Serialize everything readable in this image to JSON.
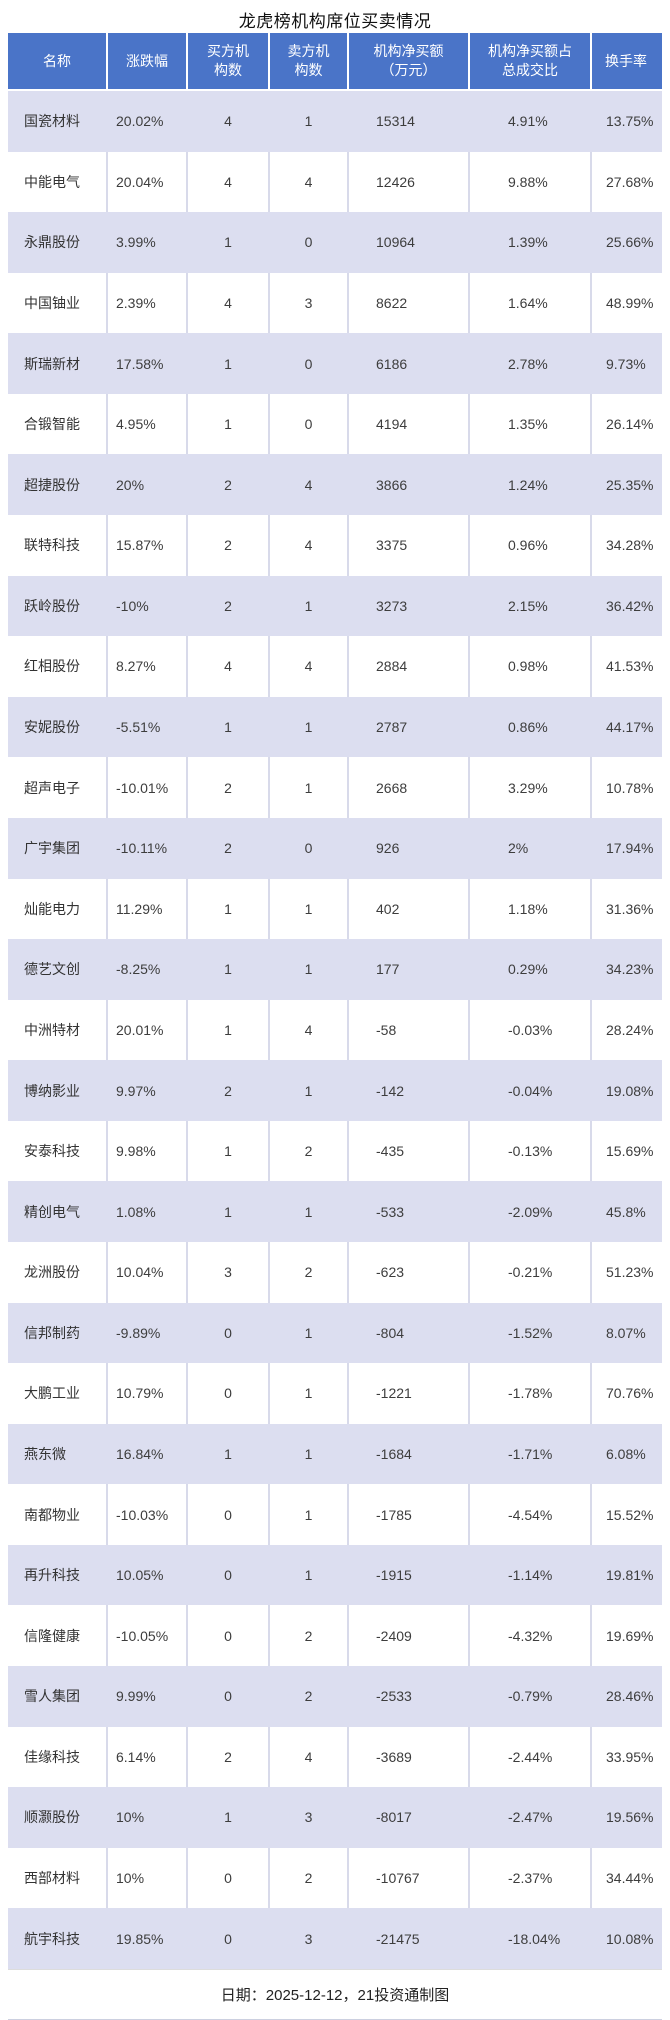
{
  "title": "龙虎榜机构席位买卖情况",
  "chart_data": {
    "type": "table",
    "title": "龙虎榜机构席位买卖情况",
    "columns": [
      "名称",
      "涨跌幅",
      "买方机构数",
      "卖方机构数",
      "机构净买额（万元）",
      "机构净买额占总成交比",
      "换手率"
    ],
    "header_lines": [
      [
        "名称"
      ],
      [
        "涨跌幅"
      ],
      [
        "买方机",
        "构数"
      ],
      [
        "卖方机",
        "构数"
      ],
      [
        "机构净买额",
        "（万元）"
      ],
      [
        "机构净买额占",
        "总成交比"
      ],
      [
        "换手率"
      ]
    ],
    "rows": [
      [
        "国瓷材料",
        "20.02%",
        "4",
        "1",
        "15314",
        "4.91%",
        "13.75%"
      ],
      [
        "中能电气",
        "20.04%",
        "4",
        "4",
        "12426",
        "9.88%",
        "27.68%"
      ],
      [
        "永鼎股份",
        "3.99%",
        "1",
        "0",
        "10964",
        "1.39%",
        "25.66%"
      ],
      [
        "中国铀业",
        "2.39%",
        "4",
        "3",
        "8622",
        "1.64%",
        "48.99%"
      ],
      [
        "斯瑞新材",
        "17.58%",
        "1",
        "0",
        "6186",
        "2.78%",
        "9.73%"
      ],
      [
        "合锻智能",
        "4.95%",
        "1",
        "0",
        "4194",
        "1.35%",
        "26.14%"
      ],
      [
        "超捷股份",
        "20%",
        "2",
        "4",
        "3866",
        "1.24%",
        "25.35%"
      ],
      [
        "联特科技",
        "15.87%",
        "2",
        "4",
        "3375",
        "0.96%",
        "34.28%"
      ],
      [
        "跃岭股份",
        "-10%",
        "2",
        "1",
        "3273",
        "2.15%",
        "36.42%"
      ],
      [
        "红相股份",
        "8.27%",
        "4",
        "4",
        "2884",
        "0.98%",
        "41.53%"
      ],
      [
        "安妮股份",
        "-5.51%",
        "1",
        "1",
        "2787",
        "0.86%",
        "44.17%"
      ],
      [
        "超声电子",
        "-10.01%",
        "2",
        "1",
        "2668",
        "3.29%",
        "10.78%"
      ],
      [
        "广宇集团",
        "-10.11%",
        "2",
        "0",
        "926",
        "2%",
        "17.94%"
      ],
      [
        "灿能电力",
        "11.29%",
        "1",
        "1",
        "402",
        "1.18%",
        "31.36%"
      ],
      [
        "德艺文创",
        "-8.25%",
        "1",
        "1",
        "177",
        "0.29%",
        "34.23%"
      ],
      [
        "中洲特材",
        "20.01%",
        "1",
        "4",
        "-58",
        "-0.03%",
        "28.24%"
      ],
      [
        "博纳影业",
        "9.97%",
        "2",
        "1",
        "-142",
        "-0.04%",
        "19.08%"
      ],
      [
        "安泰科技",
        "9.98%",
        "1",
        "2",
        "-435",
        "-0.13%",
        "15.69%"
      ],
      [
        "精创电气",
        "1.08%",
        "1",
        "1",
        "-533",
        "-2.09%",
        "45.8%"
      ],
      [
        "龙洲股份",
        "10.04%",
        "3",
        "2",
        "-623",
        "-0.21%",
        "51.23%"
      ],
      [
        "信邦制药",
        "-9.89%",
        "0",
        "1",
        "-804",
        "-1.52%",
        "8.07%"
      ],
      [
        "大鹏工业",
        "10.79%",
        "0",
        "1",
        "-1221",
        "-1.78%",
        "70.76%"
      ],
      [
        "燕东微",
        "16.84%",
        "1",
        "1",
        "-1684",
        "-1.71%",
        "6.08%"
      ],
      [
        "南都物业",
        "-10.03%",
        "0",
        "1",
        "-1785",
        "-4.54%",
        "15.52%"
      ],
      [
        "再升科技",
        "10.05%",
        "0",
        "1",
        "-1915",
        "-1.14%",
        "19.81%"
      ],
      [
        "信隆健康",
        "-10.05%",
        "0",
        "2",
        "-2409",
        "-4.32%",
        "19.69%"
      ],
      [
        "雪人集团",
        "9.99%",
        "0",
        "2",
        "-2533",
        "-0.79%",
        "28.46%"
      ],
      [
        "佳缘科技",
        "6.14%",
        "2",
        "4",
        "-3689",
        "-2.44%",
        "33.95%"
      ],
      [
        "顺灏股份",
        "10%",
        "1",
        "3",
        "-8017",
        "-2.47%",
        "19.56%"
      ],
      [
        "西部材料",
        "10%",
        "0",
        "2",
        "-10767",
        "-2.37%",
        "34.44%"
      ],
      [
        "航宇科技",
        "19.85%",
        "0",
        "3",
        "-21475",
        "-18.04%",
        "10.08%"
      ]
    ],
    "footer": "日期：2025-12-12，21投资通制图",
    "layout": {
      "grid": "on",
      "alt_row_shading": true
    }
  },
  "colors": {
    "header_bg": "#4a74c8",
    "header_text": "#ffffff",
    "row_alt_bg": "#dcdef0",
    "row_bg": "#ffffff",
    "body_text": "#3d3d3d",
    "grid_line": "#d8daea"
  }
}
